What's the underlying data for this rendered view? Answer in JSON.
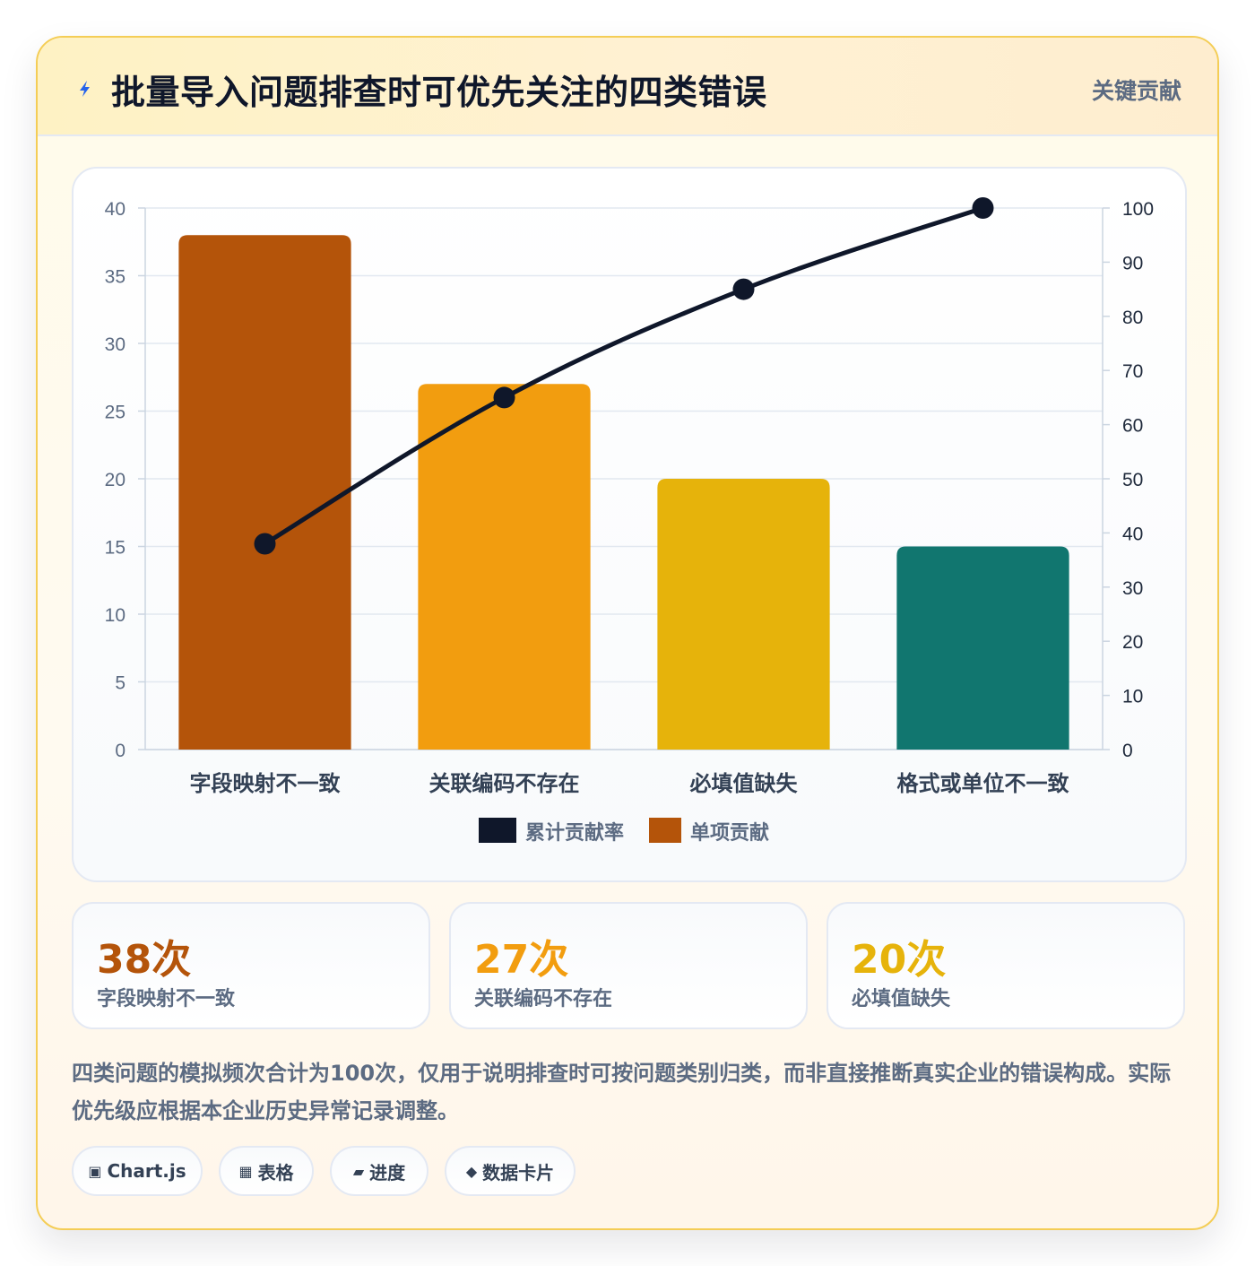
{
  "header": {
    "icon": "lightning-icon",
    "title": "批量导入问题排查时可优先关注的四类错误",
    "badge": "关键贡献"
  },
  "chart_data": {
    "type": "bar",
    "title": "",
    "categories": [
      "字段映射不一致",
      "关联编码不存在",
      "必填值缺失",
      "格式或单位不一致"
    ],
    "series": [
      {
        "name": "单项贡献",
        "type": "bar",
        "axis": "left",
        "values": [
          38,
          27,
          20,
          15
        ],
        "colors": [
          "#b4540a",
          "#f29d0f",
          "#e6b30b",
          "#11766f"
        ]
      },
      {
        "name": "累计贡献率",
        "type": "line",
        "axis": "right",
        "values": [
          38,
          65,
          85,
          100
        ],
        "color": "#0f172a"
      }
    ],
    "y_left": {
      "min": 0,
      "max": 40,
      "ticks": [
        0,
        5,
        10,
        15,
        20,
        25,
        30,
        35,
        40
      ]
    },
    "y_right": {
      "min": 0,
      "max": 100,
      "ticks": [
        0,
        10,
        20,
        30,
        40,
        50,
        60,
        70,
        80,
        90,
        100
      ]
    },
    "grid": true,
    "legend": {
      "position": "bottom",
      "items": [
        {
          "label": "累计贡献率",
          "color": "#0f172a"
        },
        {
          "label": "单项贡献",
          "color": "#b4540a"
        }
      ]
    }
  },
  "stats": [
    {
      "value": "38次",
      "label": "字段映射不一致",
      "color": "#b4540a"
    },
    {
      "value": "27次",
      "label": "关联编码不存在",
      "color": "#f29d0f"
    },
    {
      "value": "20次",
      "label": "必填值缺失",
      "color": "#e6b30b"
    }
  ],
  "note": "四类问题的模拟频次合计为100次，仅用于说明排查时可按问题类别归类，而非直接推断真实企业的错误构成。实际优先级应根据本企业历史异常记录调整。",
  "tags": [
    {
      "icon": "▣",
      "label": "Chart.js"
    },
    {
      "icon": "▦",
      "label": "表格"
    },
    {
      "icon": "▰",
      "label": "进度"
    },
    {
      "icon": "◆",
      "label": "数据卡片"
    }
  ]
}
